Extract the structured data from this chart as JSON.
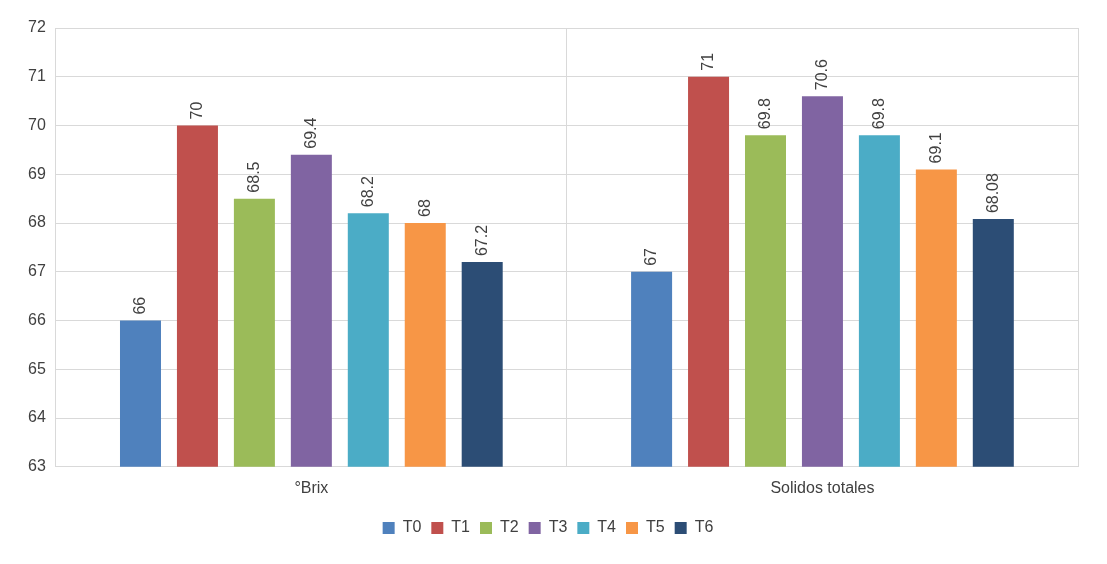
{
  "chart_data": {
    "type": "bar",
    "categories": [
      "°Brix",
      "Solidos totales"
    ],
    "series": [
      {
        "name": "T0",
        "color": "#4f81bd",
        "values": [
          66,
          67
        ]
      },
      {
        "name": "T1",
        "color": "#c0504d",
        "values": [
          70,
          71
        ]
      },
      {
        "name": "T2",
        "color": "#9bbb59",
        "values": [
          68.5,
          69.8
        ]
      },
      {
        "name": "T3",
        "color": "#8064a2",
        "values": [
          69.4,
          70.6
        ]
      },
      {
        "name": "T4",
        "color": "#4bacc6",
        "values": [
          68.2,
          69.8
        ]
      },
      {
        "name": "T5",
        "color": "#f79646",
        "values": [
          68,
          69.1
        ]
      },
      {
        "name": "T6",
        "color": "#2c4d75",
        "values": [
          67.2,
          68.08
        ]
      }
    ],
    "ylim": [
      63,
      72
    ],
    "yticks": [
      63,
      64,
      65,
      66,
      67,
      68,
      69,
      70,
      71,
      72
    ],
    "grid": true,
    "legend": "bottom",
    "data_labels": true
  }
}
